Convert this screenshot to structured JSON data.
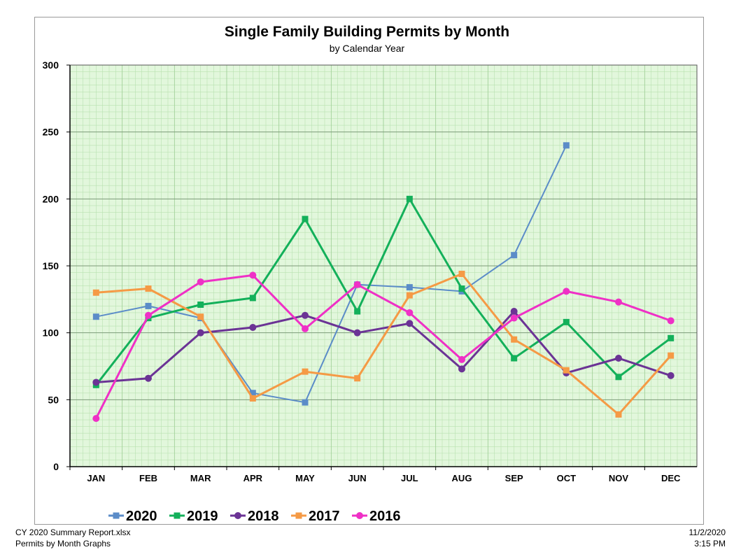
{
  "chart_data": {
    "type": "line",
    "title": "Single Family Building Permits by Month",
    "subtitle": "by Calendar Year",
    "categories": [
      "JAN",
      "FEB",
      "MAR",
      "APR",
      "MAY",
      "JUN",
      "JUL",
      "AUG",
      "SEP",
      "OCT",
      "NOV",
      "DEC"
    ],
    "ylim": [
      0,
      300
    ],
    "yticks": [
      0,
      50,
      100,
      150,
      200,
      250,
      300
    ],
    "grid": true,
    "legend_position": "bottom",
    "series": [
      {
        "name": "2020",
        "color": "#5b8cc8",
        "marker": "square",
        "values": [
          112,
          120,
          111,
          55,
          48,
          136,
          134,
          131,
          158,
          240,
          null,
          null
        ]
      },
      {
        "name": "2019",
        "color": "#13b05a",
        "marker": "square",
        "values": [
          61,
          111,
          121,
          126,
          185,
          116,
          200,
          133,
          81,
          108,
          67,
          96
        ]
      },
      {
        "name": "2018",
        "color": "#6b3395",
        "marker": "circle",
        "values": [
          63,
          66,
          100,
          104,
          113,
          100,
          107,
          73,
          116,
          70,
          81,
          68
        ]
      },
      {
        "name": "2017",
        "color": "#f59a45",
        "marker": "square",
        "values": [
          130,
          133,
          112,
          51,
          71,
          66,
          128,
          144,
          95,
          72,
          39,
          83
        ]
      },
      {
        "name": "2016",
        "color": "#ef30c6",
        "marker": "circle",
        "values": [
          36,
          113,
          138,
          143,
          103,
          136,
          115,
          80,
          111,
          131,
          123,
          109
        ]
      }
    ]
  },
  "footer": {
    "file": "CY 2020 Summary Report.xlsx",
    "sheet": "Permits by Month Graphs",
    "date": "11/2/2020",
    "time": "3:15 PM"
  }
}
